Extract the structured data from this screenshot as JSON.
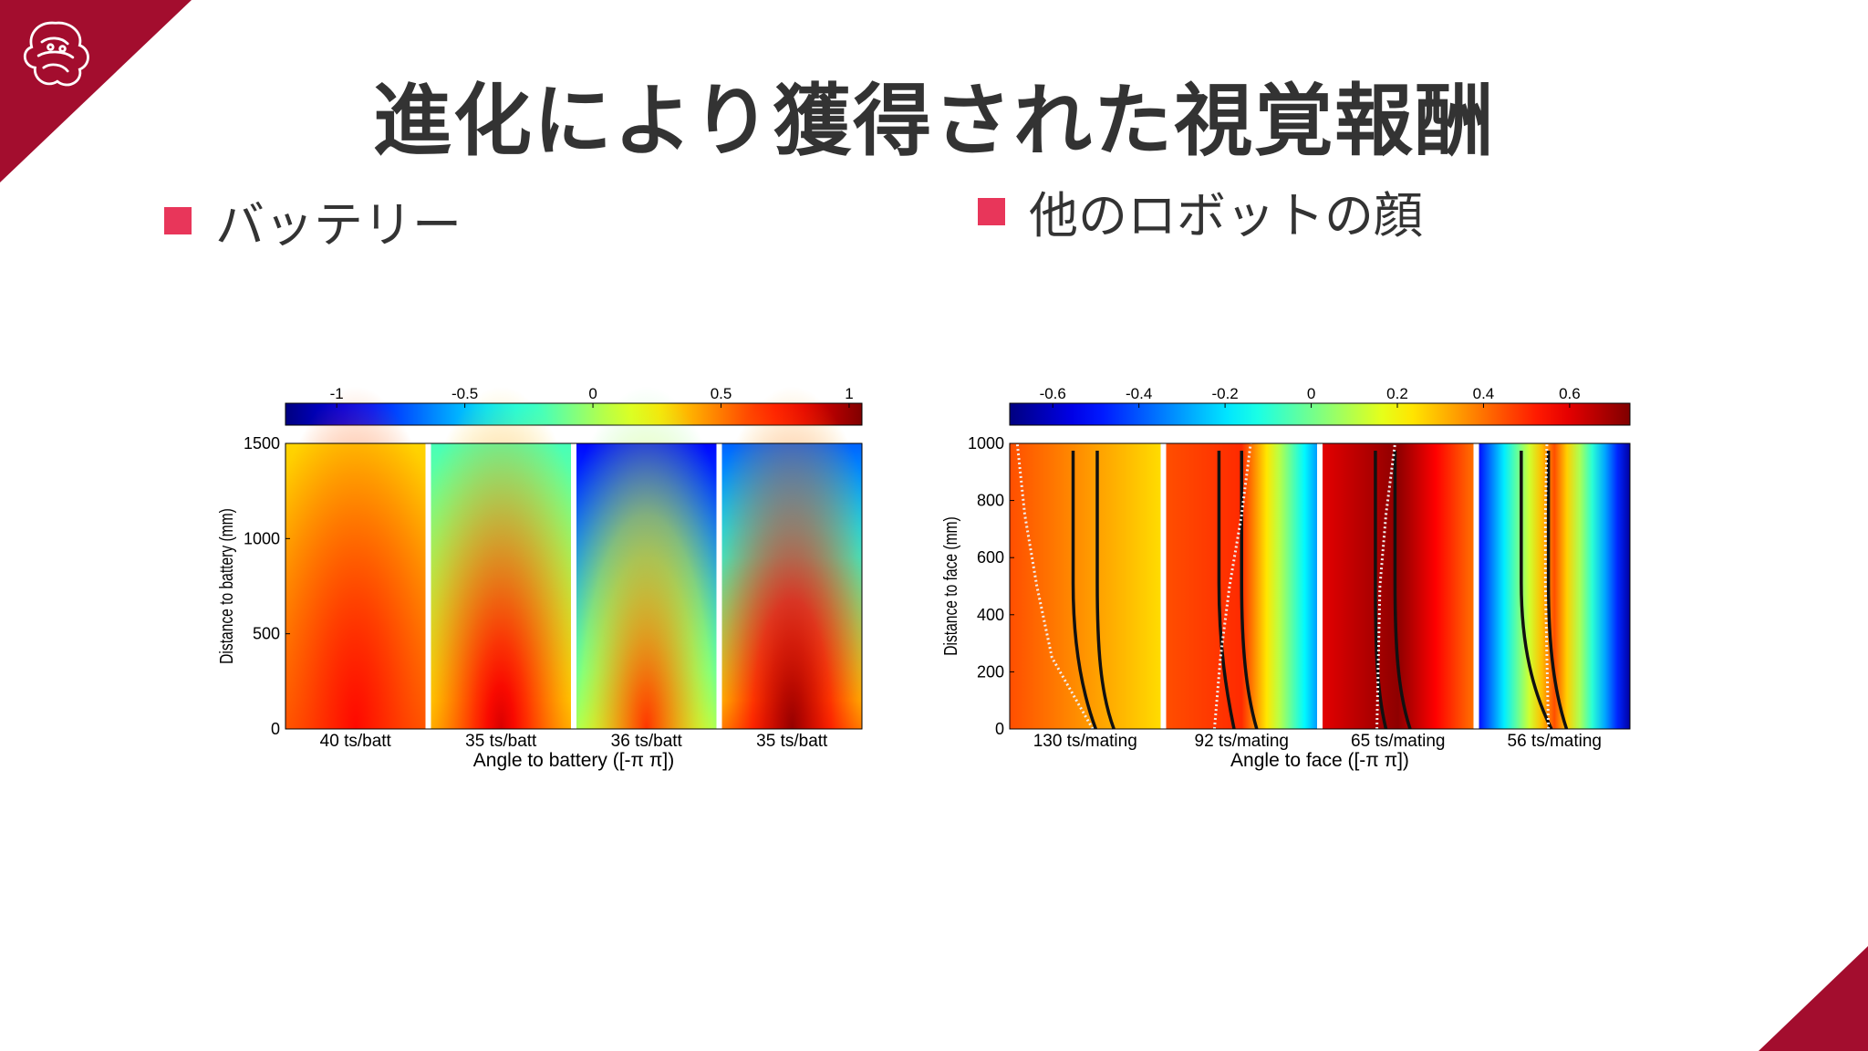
{
  "slide": {
    "title": "進化により獲得された視覚報酬",
    "bullets": [
      {
        "label": "バッテリー"
      },
      {
        "label": "他のロボットの顔"
      }
    ],
    "accent_color": "#a30d2e",
    "bullet_color": "#e8365a"
  },
  "chart_data": [
    {
      "type": "heatmap",
      "title": "",
      "xlabel": "Angle to battery ([-π π])",
      "ylabel": "Distance to battery (mm)",
      "ylim": [
        0,
        1500
      ],
      "yticks": [
        "0",
        "500",
        "1000",
        "1500"
      ],
      "colorbar": {
        "range": [
          -1.2,
          1.05
        ],
        "ticks": [
          -1,
          -0.5,
          0,
          0.5,
          1
        ],
        "tick_labels": [
          "-1",
          "-0.5",
          "0",
          "0.5",
          "1"
        ]
      },
      "panels": [
        {
          "label": "40 ts/batt",
          "value_at_center_bottom": 0.75,
          "value_at_edges_bottom": 0.55,
          "value_at_top": 0.3
        },
        {
          "label": "35 ts/batt",
          "value_at_center_bottom": 0.85,
          "value_at_edges_bottom": 0.3,
          "value_at_top": -0.2
        },
        {
          "label": "36 ts/batt",
          "value_at_center_bottom": 0.65,
          "value_at_edges_bottom": -0.1,
          "value_at_top": -0.9
        },
        {
          "label": "35 ts/batt",
          "value_at_center_bottom": 1.0,
          "value_at_edges_bottom": 0.4,
          "value_at_top": -0.7
        }
      ]
    },
    {
      "type": "heatmap",
      "title": "",
      "xlabel": "Angle to face ([-π π])",
      "ylabel": "Distance to face (mm)",
      "ylim": [
        0,
        1000
      ],
      "yticks": [
        "0",
        "200",
        "400",
        "600",
        "800",
        "1000"
      ],
      "colorbar": {
        "range": [
          -0.7,
          0.74
        ],
        "ticks": [
          -0.6,
          -0.4,
          -0.2,
          0,
          0.2,
          0.4,
          0.6
        ],
        "tick_labels": [
          "-0.6",
          "-0.4",
          "-0.2",
          "0",
          "0.2",
          "0.4",
          "0.6"
        ]
      },
      "panels": [
        {
          "label": "130 ts/mating",
          "left_value": 0.45,
          "center_value": 0.35,
          "right_value": 0.25
        },
        {
          "label": "92 ts/mating",
          "left_value": 0.45,
          "center_value": 0.5,
          "right_value": -0.3
        },
        {
          "label": "65 ts/mating",
          "left_value": 0.6,
          "center_value": 0.72,
          "right_value": 0.4
        },
        {
          "label": "56 ts/mating",
          "left_value": -0.5,
          "center_value": 0.45,
          "right_value": -0.65
        }
      ]
    }
  ]
}
